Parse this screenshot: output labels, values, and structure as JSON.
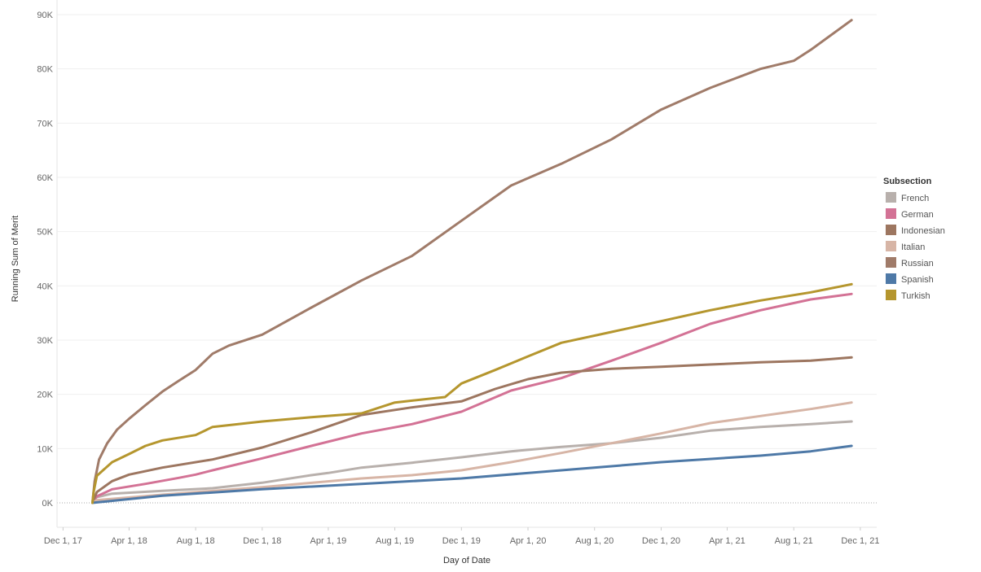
{
  "chart_data": {
    "type": "line",
    "xlabel": "Day of Date",
    "ylabel": "Running Sum of Merit",
    "ylim": [
      0,
      90000
    ],
    "y_ticks": [
      {
        "value": 0,
        "label": "0K"
      },
      {
        "value": 10000,
        "label": "10K"
      },
      {
        "value": 20000,
        "label": "20K"
      },
      {
        "value": 30000,
        "label": "30K"
      },
      {
        "value": 40000,
        "label": "40K"
      },
      {
        "value": 50000,
        "label": "50K"
      },
      {
        "value": 60000,
        "label": "60K"
      },
      {
        "value": 70000,
        "label": "70K"
      },
      {
        "value": 80000,
        "label": "80K"
      },
      {
        "value": 90000,
        "label": "90K"
      }
    ],
    "x_ticks": [
      {
        "value": "2017-12-01",
        "label": "Dec 1, 17"
      },
      {
        "value": "2018-04-01",
        "label": "Apr 1, 18"
      },
      {
        "value": "2018-08-01",
        "label": "Aug 1, 18"
      },
      {
        "value": "2018-12-01",
        "label": "Dec 1, 18"
      },
      {
        "value": "2019-04-01",
        "label": "Apr 1, 19"
      },
      {
        "value": "2019-08-01",
        "label": "Aug 1, 19"
      },
      {
        "value": "2019-12-01",
        "label": "Dec 1, 19"
      },
      {
        "value": "2020-04-01",
        "label": "Apr 1, 20"
      },
      {
        "value": "2020-08-01",
        "label": "Aug 1, 20"
      },
      {
        "value": "2020-12-01",
        "label": "Dec 1, 20"
      },
      {
        "value": "2021-04-01",
        "label": "Apr 1, 21"
      },
      {
        "value": "2021-08-01",
        "label": "Aug 1, 21"
      },
      {
        "value": "2021-12-01",
        "label": "Dec 1, 21"
      }
    ],
    "xlim": [
      "2017-11-20",
      "2021-12-31"
    ],
    "grid": true,
    "legend": {
      "title": "Subsection",
      "placement": "right"
    },
    "series": [
      {
        "name": "French",
        "color": "#b8b0ac",
        "points": [
          [
            "2018-01-24",
            0
          ],
          [
            "2018-01-30",
            1000
          ],
          [
            "2018-03-01",
            1700
          ],
          [
            "2018-06-01",
            2200
          ],
          [
            "2018-09-01",
            2700
          ],
          [
            "2018-12-01",
            3700
          ],
          [
            "2019-03-01",
            5100
          ],
          [
            "2019-04-01",
            5500
          ],
          [
            "2019-06-01",
            6500
          ],
          [
            "2019-09-01",
            7400
          ],
          [
            "2019-12-01",
            8400
          ],
          [
            "2020-03-01",
            9500
          ],
          [
            "2020-06-01",
            10300
          ],
          [
            "2020-09-01",
            11000
          ],
          [
            "2020-12-01",
            12000
          ],
          [
            "2021-03-01",
            13300
          ],
          [
            "2021-06-01",
            14000
          ],
          [
            "2021-09-01",
            14500
          ],
          [
            "2021-11-15",
            15000
          ]
        ]
      },
      {
        "name": "German",
        "color": "#d37295",
        "points": [
          [
            "2018-01-24",
            0
          ],
          [
            "2018-02-01",
            1200
          ],
          [
            "2018-03-01",
            2500
          ],
          [
            "2018-05-01",
            3500
          ],
          [
            "2018-07-01",
            4600
          ],
          [
            "2018-08-01",
            5200
          ],
          [
            "2018-09-01",
            6000
          ],
          [
            "2018-12-01",
            8200
          ],
          [
            "2019-03-01",
            10500
          ],
          [
            "2019-06-01",
            12800
          ],
          [
            "2019-09-01",
            14500
          ],
          [
            "2019-12-01",
            16800
          ],
          [
            "2020-03-01",
            20700
          ],
          [
            "2020-06-01",
            23000
          ],
          [
            "2020-09-01",
            26200
          ],
          [
            "2020-12-01",
            29500
          ],
          [
            "2021-03-01",
            33000
          ],
          [
            "2021-06-01",
            35500
          ],
          [
            "2021-09-01",
            37500
          ],
          [
            "2021-11-15",
            38500
          ]
        ]
      },
      {
        "name": "Indonesian",
        "color": "#9d7660",
        "points": [
          [
            "2018-01-24",
            0
          ],
          [
            "2018-02-01",
            2000
          ],
          [
            "2018-03-01",
            4000
          ],
          [
            "2018-04-01",
            5200
          ],
          [
            "2018-06-01",
            6500
          ],
          [
            "2018-09-01",
            8000
          ],
          [
            "2018-12-01",
            10200
          ],
          [
            "2019-03-01",
            13000
          ],
          [
            "2019-06-01",
            16200
          ],
          [
            "2019-09-01",
            17600
          ],
          [
            "2019-12-01",
            18700
          ],
          [
            "2020-02-01",
            21000
          ],
          [
            "2020-04-01",
            22800
          ],
          [
            "2020-06-01",
            24000
          ],
          [
            "2020-09-01",
            24700
          ],
          [
            "2020-12-01",
            25100
          ],
          [
            "2021-03-01",
            25500
          ],
          [
            "2021-06-01",
            25900
          ],
          [
            "2021-09-01",
            26200
          ],
          [
            "2021-11-15",
            26800
          ]
        ]
      },
      {
        "name": "Italian",
        "color": "#d7b5a6",
        "points": [
          [
            "2018-01-24",
            0
          ],
          [
            "2018-02-01",
            500
          ],
          [
            "2018-06-01",
            1500
          ],
          [
            "2018-12-01",
            2900
          ],
          [
            "2019-06-01",
            4500
          ],
          [
            "2019-09-01",
            5100
          ],
          [
            "2019-12-01",
            6000
          ],
          [
            "2020-03-01",
            7500
          ],
          [
            "2020-06-01",
            9200
          ],
          [
            "2020-09-01",
            11000
          ],
          [
            "2020-12-01",
            12800
          ],
          [
            "2021-03-01",
            14700
          ],
          [
            "2021-06-01",
            16000
          ],
          [
            "2021-09-01",
            17300
          ],
          [
            "2021-11-15",
            18500
          ]
        ]
      },
      {
        "name": "Russian",
        "color": "#a07b69",
        "points": [
          [
            "2018-01-24",
            0
          ],
          [
            "2018-01-28",
            4000
          ],
          [
            "2018-02-05",
            8000
          ],
          [
            "2018-02-20",
            11000
          ],
          [
            "2018-03-10",
            13500
          ],
          [
            "2018-04-01",
            15500
          ],
          [
            "2018-05-01",
            18000
          ],
          [
            "2018-06-01",
            20500
          ],
          [
            "2018-07-01",
            22500
          ],
          [
            "2018-08-01",
            24500
          ],
          [
            "2018-09-01",
            27500
          ],
          [
            "2018-10-01",
            29000
          ],
          [
            "2018-12-01",
            31000
          ],
          [
            "2019-03-01",
            36000
          ],
          [
            "2019-06-01",
            41000
          ],
          [
            "2019-09-01",
            45500
          ],
          [
            "2019-12-01",
            52000
          ],
          [
            "2020-03-01",
            58500
          ],
          [
            "2020-06-01",
            62500
          ],
          [
            "2020-09-01",
            67000
          ],
          [
            "2020-12-01",
            72500
          ],
          [
            "2021-03-01",
            76500
          ],
          [
            "2021-06-01",
            80000
          ],
          [
            "2021-08-01",
            81500
          ],
          [
            "2021-09-01",
            83500
          ],
          [
            "2021-11-15",
            89000
          ]
        ]
      },
      {
        "name": "Spanish",
        "color": "#4e79a7",
        "points": [
          [
            "2018-01-24",
            0
          ],
          [
            "2018-06-01",
            1300
          ],
          [
            "2018-12-01",
            2500
          ],
          [
            "2019-06-01",
            3500
          ],
          [
            "2019-12-01",
            4500
          ],
          [
            "2020-06-01",
            6000
          ],
          [
            "2020-12-01",
            7500
          ],
          [
            "2021-06-01",
            8700
          ],
          [
            "2021-09-01",
            9500
          ],
          [
            "2021-11-15",
            10500
          ]
        ]
      },
      {
        "name": "Turkish",
        "color": "#b5962e",
        "points": [
          [
            "2018-01-24",
            0
          ],
          [
            "2018-01-26",
            2000
          ],
          [
            "2018-02-01",
            5000
          ],
          [
            "2018-03-01",
            7500
          ],
          [
            "2018-04-01",
            9000
          ],
          [
            "2018-05-01",
            10500
          ],
          [
            "2018-06-01",
            11500
          ],
          [
            "2018-08-01",
            12500
          ],
          [
            "2018-09-01",
            14000
          ],
          [
            "2018-12-01",
            15000
          ],
          [
            "2019-03-01",
            15800
          ],
          [
            "2019-06-01",
            16500
          ],
          [
            "2019-08-01",
            18500
          ],
          [
            "2019-11-01",
            19500
          ],
          [
            "2019-12-01",
            22000
          ],
          [
            "2020-02-01",
            24500
          ],
          [
            "2020-04-01",
            27000
          ],
          [
            "2020-06-01",
            29500
          ],
          [
            "2020-09-01",
            31500
          ],
          [
            "2020-12-01",
            33500
          ],
          [
            "2021-03-01",
            35500
          ],
          [
            "2021-06-01",
            37300
          ],
          [
            "2021-09-01",
            38800
          ],
          [
            "2021-11-15",
            40300
          ]
        ]
      }
    ]
  }
}
